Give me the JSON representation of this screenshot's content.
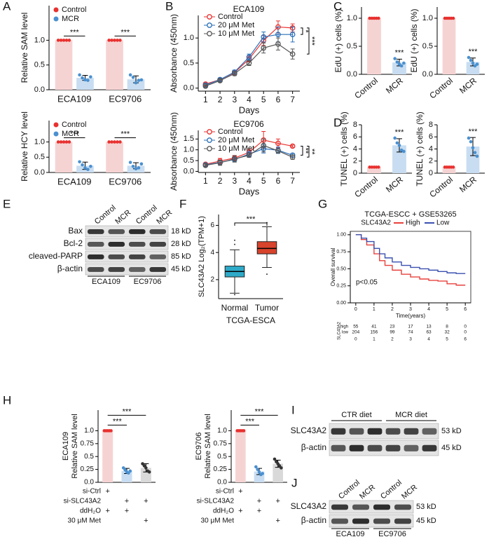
{
  "panel_letters": [
    "A",
    "B",
    "C",
    "D",
    "E",
    "F",
    "G",
    "H",
    "I",
    "J"
  ],
  "chart_data": [
    {
      "type": "bar",
      "ylabel": "Relative SAM level",
      "categories": [
        "ECA109",
        "EC9706"
      ],
      "series": [
        {
          "name": "Control",
          "color": "#f6d3d3",
          "point_color": "#e8312f",
          "values": [
            1,
            1
          ],
          "points": [
            [
              1,
              1,
              1,
              1,
              1
            ],
            [
              1,
              1,
              1,
              1,
              1
            ]
          ]
        },
        {
          "name": "MCR",
          "color": "#c8ddf1",
          "point_color": "#4a90d0",
          "values": [
            0.24,
            0.21
          ],
          "errors": [
            0.05,
            0.07
          ],
          "points": [
            [
              0.3,
              0.24,
              0.2,
              0.19,
              0.26
            ],
            [
              0.3,
              0.25,
              0.14,
              0.19,
              0.2
            ]
          ]
        }
      ],
      "significance": [
        "***",
        "***"
      ],
      "ylim": [
        0,
        1.7
      ],
      "yticks": [
        {
          "value": 0,
          "label": "0.0"
        },
        {
          "value": 0.5,
          "label": "0.5"
        },
        {
          "value": 1,
          "label": "1.0"
        }
      ]
    },
    {
      "type": "bar",
      "ylabel": "Relative HCY level",
      "categories": [
        "ECA109",
        "EC9706"
      ],
      "series": [
        {
          "name": "Control",
          "color": "#f6d3d3",
          "point_color": "#e8312f",
          "values": [
            1,
            1
          ],
          "points": [
            [
              1,
              1,
              1,
              1,
              1
            ],
            [
              1,
              1,
              1,
              1,
              1
            ]
          ]
        },
        {
          "name": "MCR",
          "color": "#c8ddf1",
          "point_color": "#4a90d0",
          "values": [
            0.22,
            0.22
          ],
          "errors": [
            0.12,
            0.1
          ],
          "points": [
            [
              0.35,
              0.25,
              0.15,
              0.1,
              0.2
            ],
            [
              0.33,
              0.2,
              0.12,
              0.15,
              0.28
            ]
          ]
        }
      ],
      "significance": [
        "***",
        "***"
      ],
      "ylim": [
        0,
        1.7
      ],
      "yticks": [
        {
          "value": 0,
          "label": "0.0"
        },
        {
          "value": 0.5,
          "label": "0.5"
        },
        {
          "value": 1,
          "label": "1.0"
        }
      ]
    },
    {
      "type": "line",
      "title": "ECA109",
      "xlabel": "Days",
      "ylabel": "Absorbance (450nm)",
      "x": [
        1,
        2,
        3,
        4,
        5,
        6,
        7
      ],
      "xlim": [
        0.5,
        7.5
      ],
      "xticks": [
        1,
        2,
        3,
        4,
        5,
        6,
        7
      ],
      "ylim": [
        -0.06,
        1.45
      ],
      "yticks": [
        {
          "value": 0,
          "label": "0.0"
        },
        {
          "value": 0.5,
          "label": "0.5"
        },
        {
          "value": 1,
          "label": "1.0"
        }
      ],
      "series": [
        {
          "name": "Control",
          "color": "#e8312f",
          "values": [
            0.08,
            0.17,
            0.31,
            0.58,
            0.95,
            1.22,
            1.2
          ],
          "errors": [
            0.03,
            0.03,
            0.04,
            0.06,
            0.1,
            0.12,
            0.08
          ]
        },
        {
          "name": "20 μM Met",
          "color": "#2a6fb8",
          "values": [
            0.06,
            0.17,
            0.32,
            0.62,
            1.02,
            1.07,
            1.07
          ],
          "errors": [
            0.03,
            0.03,
            0.04,
            0.06,
            0.1,
            0.15,
            0.15
          ]
        },
        {
          "name": "10 μM Met",
          "color": "#555555",
          "values": [
            0.04,
            0.15,
            0.29,
            0.5,
            0.8,
            0.88,
            0.68
          ],
          "errors": [
            0.02,
            0.03,
            0.04,
            0.05,
            0.1,
            0.12,
            0.1
          ]
        }
      ],
      "significance": [
        "*",
        "***"
      ]
    },
    {
      "type": "line",
      "title": "EC9706",
      "xlabel": "Days",
      "ylabel": "Absorbance (450nm)",
      "x": [
        1,
        2,
        3,
        4,
        5,
        6,
        7
      ],
      "xlim": [
        0.5,
        7.5
      ],
      "xticks": [
        1,
        2,
        3,
        4,
        5,
        6,
        7
      ],
      "ylim": [
        -0.05,
        1.9
      ],
      "yticks": [
        {
          "value": 0,
          "label": "0.0"
        },
        {
          "value": 0.5,
          "label": "0.5"
        },
        {
          "value": 1,
          "label": "1.0"
        },
        {
          "value": 1.5,
          "label": "1.5"
        }
      ],
      "series": [
        {
          "name": "Control",
          "color": "#e8312f",
          "values": [
            0.33,
            0.48,
            0.62,
            0.88,
            1.45,
            1.3,
            1.17
          ],
          "errors": [
            0.06,
            0.12,
            0.12,
            0.15,
            0.4,
            0.2,
            0.05
          ]
        },
        {
          "name": "20 μM Met",
          "color": "#2a6fb8",
          "values": [
            0.3,
            0.42,
            0.55,
            0.8,
            1.05,
            0.98,
            0.75
          ],
          "errors": [
            0.05,
            0.1,
            0.1,
            0.12,
            0.2,
            0.15,
            0.08
          ]
        },
        {
          "name": "10 μM Met",
          "color": "#555555",
          "values": [
            0.28,
            0.4,
            0.58,
            0.75,
            1.2,
            0.95,
            0.66
          ],
          "errors": [
            0.05,
            0.12,
            0.15,
            0.1,
            0.3,
            0.1,
            0.1
          ]
        }
      ],
      "significance": [
        "**",
        "**"
      ]
    },
    {
      "type": "bar",
      "ylabel": "EdU (+) cells (%)",
      "categories": [
        "Control",
        "MCR"
      ],
      "values": [
        1,
        0.21
      ],
      "errors": [
        null,
        0.06
      ],
      "colors": [
        "#f6d3d3",
        "#c8ddf1"
      ],
      "point_colors": [
        "#e8312f",
        "#4a90d0"
      ],
      "points": [
        [
          1,
          1,
          1,
          1,
          1
        ],
        [
          0.28,
          0.22,
          0.18,
          0.15,
          0.2
        ]
      ],
      "significance": [
        "***"
      ],
      "ylim": [
        0,
        1.2
      ],
      "yticks": [
        {
          "value": 0,
          "label": "0.0"
        },
        {
          "value": 0.5,
          "label": "0.5"
        },
        {
          "value": 1,
          "label": "1.0"
        }
      ]
    },
    {
      "type": "bar",
      "ylabel": "EdU (+) cells (%)",
      "categories": [
        "Control",
        "MCR"
      ],
      "values": [
        1,
        0.22
      ],
      "errors": [
        null,
        0.07
      ],
      "colors": [
        "#f6d3d3",
        "#c8ddf1"
      ],
      "point_colors": [
        "#e8312f",
        "#4a90d0"
      ],
      "points": [
        [
          1,
          1,
          1,
          1,
          1
        ],
        [
          0.3,
          0.25,
          0.2,
          0.15,
          0.18
        ]
      ],
      "significance": [
        "***"
      ],
      "ylim": [
        0,
        1.2
      ],
      "yticks": [
        {
          "value": 0,
          "label": "0.0"
        },
        {
          "value": 0.5,
          "label": "0.5"
        },
        {
          "value": 1,
          "label": "1.0"
        }
      ]
    },
    {
      "type": "bar",
      "ylabel": "TUNEL (+) cells (%)",
      "categories": [
        "Control",
        "MCR"
      ],
      "values": [
        1,
        4.6
      ],
      "errors": [
        null,
        1.1
      ],
      "colors": [
        "#f6d3d3",
        "#c8ddf1"
      ],
      "point_colors": [
        "#e8312f",
        "#4a90d0"
      ],
      "points": [
        [
          1,
          1,
          1,
          1,
          1
        ],
        [
          5.8,
          5,
          4.6,
          3.8,
          3.6
        ]
      ],
      "significance": [
        "***"
      ],
      "ylim": [
        0,
        8
      ],
      "yticks": [
        0,
        2,
        4,
        6,
        8
      ]
    },
    {
      "type": "bar",
      "ylabel": "TUNEL (+) cells (%)",
      "categories": [
        "Control",
        "MCR"
      ],
      "values": [
        1,
        4.4
      ],
      "errors": [
        null,
        1.5
      ],
      "colors": [
        "#f6d3d3",
        "#c8ddf1"
      ],
      "point_colors": [
        "#e8312f",
        "#4a90d0"
      ],
      "points": [
        [
          1,
          1,
          1,
          1,
          1
        ],
        [
          5.8,
          5.2,
          4.2,
          3.4,
          2.8
        ]
      ],
      "significance": [
        "***"
      ],
      "ylim": [
        0,
        8
      ],
      "yticks": [
        0,
        2,
        4,
        6,
        8
      ]
    },
    {
      "type": "box",
      "xlabel": "TCGA-ESCA",
      "ylabel": "SLC43A2 Log₂(TPM+1)",
      "categories": [
        "Normal",
        "Tumor"
      ],
      "colors": [
        "#2eaac8",
        "#d8432c"
      ],
      "boxes": [
        {
          "min": 1.0,
          "q1": 2.2,
          "median": 2.6,
          "q3": 3.0,
          "max": 4.2,
          "outliers": [
            4.6,
            4.9,
            0.9
          ]
        },
        {
          "min": 2.9,
          "q1": 3.9,
          "median": 4.3,
          "q3": 4.8,
          "max": 5.9,
          "outliers": [
            2.4,
            6.2
          ]
        }
      ],
      "significance": [
        "***"
      ],
      "ylim": [
        0.6,
        6.8
      ],
      "yticks": [
        2,
        4,
        6
      ]
    },
    {
      "type": "line",
      "step": true,
      "title": "TCGA-ESCC + GSE53265",
      "legend_title": "SLC43A2",
      "ylabel": "Overall survival",
      "xlabel": "Time(years)",
      "annotation": "p<0.05",
      "x": [
        0,
        0.3,
        0.6,
        1,
        1.3,
        1.6,
        2,
        2.5,
        3,
        3.5,
        4,
        4.5,
        5,
        5.5,
        6
      ],
      "series": [
        {
          "name": "High",
          "color": "#e8413c",
          "values": [
            1,
            0.93,
            0.85,
            0.72,
            0.62,
            0.55,
            0.48,
            0.42,
            0.38,
            0.35,
            0.33,
            0.32,
            0.28,
            0.26,
            0.26
          ]
        },
        {
          "name": "Low",
          "color": "#3a50b0",
          "values": [
            1,
            0.95,
            0.9,
            0.8,
            0.72,
            0.66,
            0.6,
            0.55,
            0.52,
            0.5,
            0.48,
            0.46,
            0.44,
            0.43,
            0.43
          ]
        }
      ],
      "xlim": [
        -0.3,
        6.3
      ],
      "xticks": [
        0,
        1,
        2,
        3,
        4,
        5,
        6
      ],
      "ylim": [
        0,
        1.05
      ],
      "yticks": [
        {
          "value": 0,
          "label": "0.00"
        },
        {
          "value": 0.25,
          "label": "0.25"
        },
        {
          "value": 0.5,
          "label": "0.50"
        },
        {
          "value": 0.75,
          "label": "0.75"
        },
        {
          "value": 1,
          "label": "1.00"
        }
      ],
      "risk_table": {
        "title": "SLC43A2",
        "xticks": [
          0,
          1,
          2,
          3,
          4,
          5,
          6
        ],
        "rows": [
          {
            "name": "high",
            "color": "#e8413c",
            "values": [
              55,
              41,
              23,
              17,
              13,
              8,
              0
            ]
          },
          {
            "name": "low",
            "color": "#3a50b0",
            "values": [
              204,
              156,
              99,
              74,
              63,
              32,
              0
            ]
          }
        ]
      }
    },
    {
      "type": "bar",
      "ylabel": [
        "ECA109",
        "Relative SAM level"
      ],
      "categories": [
        null,
        null,
        null
      ],
      "values": [
        1,
        0.22,
        0.28
      ],
      "errors": [
        null,
        0.05,
        0.08
      ],
      "colors": [
        "#f6d3d3",
        "#c8ddf1",
        "#d9d9d9"
      ],
      "point_colors": [
        "#e8312f",
        "#4a90d0",
        "#333333"
      ],
      "points": [
        [
          1,
          1,
          1,
          1,
          1
        ],
        [
          0.28,
          0.24,
          0.2,
          0.18,
          0.22
        ],
        [
          0.36,
          0.32,
          0.28,
          0.22,
          0.2
        ]
      ],
      "significance": [
        "***",
        "***"
      ],
      "ylim": [
        0,
        1.4
      ],
      "yticks": [
        {
          "value": 0,
          "label": "0.0"
        },
        {
          "value": 0.25,
          "label": "0.25"
        },
        {
          "value": 0.5,
          "label": "0.5"
        },
        {
          "value": 0.75,
          "label": "0.75"
        },
        {
          "value": 1,
          "label": "1.0"
        }
      ],
      "treatments": {
        "rows": [
          {
            "name": "si-Ctrl",
            "marks": [
              "+",
              null,
              null
            ]
          },
          {
            "name": "si-SLC43A2",
            "marks": [
              null,
              "+",
              "+"
            ]
          },
          {
            "name": "ddH₂O",
            "marks": [
              "+",
              "+",
              null
            ]
          },
          {
            "name": "30 μM Met",
            "marks": [
              null,
              null,
              "+"
            ]
          }
        ]
      }
    },
    {
      "type": "bar",
      "ylabel": [
        "EC9706",
        "Relative SAM level"
      ],
      "categories": [
        null,
        null,
        null
      ],
      "values": [
        1,
        0.21,
        0.36
      ],
      "errors": [
        null,
        0.06,
        0.07
      ],
      "colors": [
        "#f6d3d3",
        "#c8ddf1",
        "#d9d9d9"
      ],
      "point_colors": [
        "#e8312f",
        "#4a90d0",
        "#333333"
      ],
      "points": [
        [
          1,
          1,
          1,
          1,
          1
        ],
        [
          0.3,
          0.25,
          0.2,
          0.15,
          0.17
        ],
        [
          0.45,
          0.4,
          0.36,
          0.32,
          0.28
        ]
      ],
      "significance": [
        "***",
        "***"
      ],
      "ylim": [
        0,
        1.4
      ],
      "yticks": [
        {
          "value": 0,
          "label": "0.0"
        },
        {
          "value": 0.25,
          "label": "0.25"
        },
        {
          "value": 0.5,
          "label": "0.5"
        },
        {
          "value": 0.75,
          "label": "0.75"
        },
        {
          "value": 1,
          "label": "1.0"
        }
      ],
      "treatments": {
        "rows": [
          {
            "name": "si-Ctrl",
            "marks": [
              "+",
              null,
              null
            ]
          },
          {
            "name": "si-SLC43A2",
            "marks": [
              null,
              "+",
              "+"
            ]
          },
          {
            "name": "ddH₂O",
            "marks": [
              "+",
              "+",
              null
            ]
          },
          {
            "name": "30 μM Met",
            "marks": [
              null,
              null,
              "+"
            ]
          }
        ]
      }
    }
  ],
  "blot_E": {
    "lanes": [
      "Control",
      "MCR",
      "Control",
      "MCR"
    ],
    "rows": [
      {
        "name": "Bax",
        "size": "18 kD"
      },
      {
        "name": "Bcl-2",
        "size": "28 kD"
      },
      {
        "name": "cleaved-PARP",
        "size": "85 kD"
      },
      {
        "name": "β-actin",
        "size": "45 kD"
      }
    ],
    "groups": [
      "ECA109",
      "EC9706"
    ]
  },
  "blot_I": {
    "groups": [
      "CTR diet",
      "MCR diet"
    ],
    "rows": [
      {
        "name": "SLC43A2",
        "size": "53 kD"
      },
      {
        "name": "β-actin",
        "size": "45 kD"
      }
    ]
  },
  "blot_J": {
    "lanes": [
      "Control",
      "MCR",
      "Control",
      "MCR"
    ],
    "rows": [
      {
        "name": "SLC43A2",
        "size": "53 kD"
      },
      {
        "name": "β-actin",
        "size": "45 kD"
      }
    ],
    "groups": [
      "ECA109",
      "EC9706"
    ]
  }
}
